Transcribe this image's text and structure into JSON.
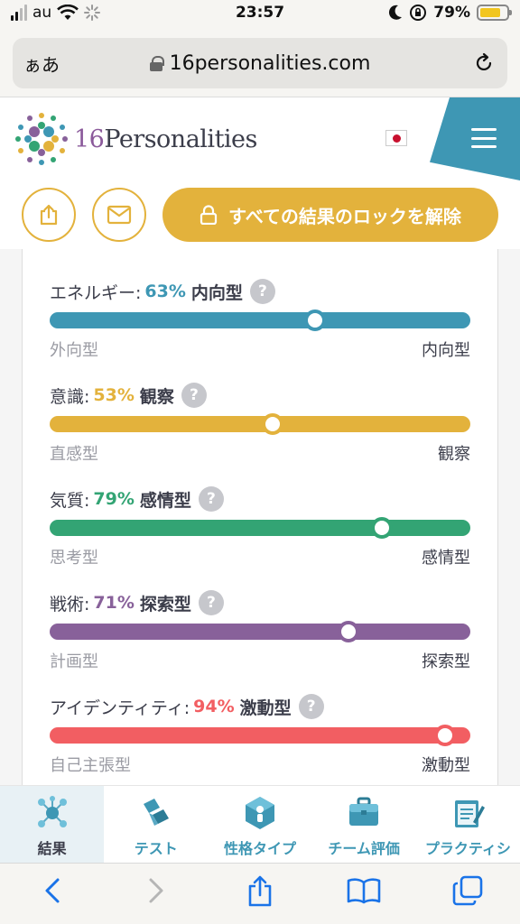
{
  "status_bar": {
    "carrier": "au",
    "time": "23:57",
    "battery": "79%"
  },
  "browser": {
    "text_size_label": "ぁあ",
    "url": "16personalities.com"
  },
  "site": {
    "logo_number": "16",
    "logo_word": "Personalities",
    "unlock_label": "すべての結果のロックを解除"
  },
  "traits": [
    {
      "name": "エネルギー:",
      "percent": "63%",
      "type": "内向型",
      "left": "外向型",
      "right": "内向型",
      "position": 0.63,
      "color": "#3e97b4"
    },
    {
      "name": "意識:",
      "percent": "53%",
      "type": "観察",
      "left": "直感型",
      "right": "観察",
      "position": 0.53,
      "color": "#e3b23c"
    },
    {
      "name": "気質:",
      "percent": "79%",
      "type": "感情型",
      "left": "思考型",
      "right": "感情型",
      "position": 0.79,
      "color": "#33a474"
    },
    {
      "name": "戦術:",
      "percent": "71%",
      "type": "探索型",
      "left": "計画型",
      "right": "探索型",
      "position": 0.71,
      "color": "#88619a"
    },
    {
      "name": "アイデンティティ:",
      "percent": "94%",
      "type": "激動型",
      "left": "自己主張型",
      "right": "激動型",
      "position": 0.94,
      "color": "#f25e62"
    }
  ],
  "help_symbol": "?",
  "tabs": [
    {
      "label": "結果",
      "icon": "molecule-icon"
    },
    {
      "label": "テスト",
      "icon": "test-icon"
    },
    {
      "label": "性格タイプ",
      "icon": "personality-icon"
    },
    {
      "label": "チーム評価",
      "icon": "briefcase-icon"
    },
    {
      "label": "プラクティシ",
      "icon": "notepad-icon"
    }
  ]
}
